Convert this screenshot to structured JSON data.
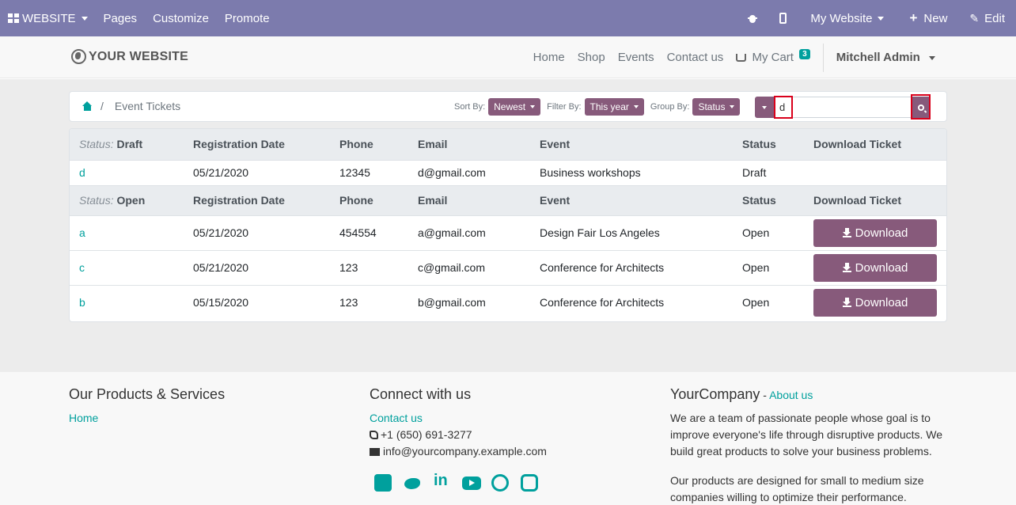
{
  "editbar": {
    "brand": "WEBSITE",
    "pages": "Pages",
    "customize": "Customize",
    "promote": "Promote",
    "my_website": "My Website",
    "new": "New",
    "edit": "Edit"
  },
  "header": {
    "logo": "YOUR WEBSITE",
    "nav": [
      "Home",
      "Shop",
      "Events",
      "Contact us"
    ],
    "cart_label": "My Cart",
    "cart_count": "3",
    "user": "Mitchell Admin"
  },
  "breadcrumb": {
    "current": "Event Tickets"
  },
  "filters": {
    "sort_label": "Sort By:",
    "sort_value": "Newest",
    "filter_label": "Filter By:",
    "filter_value": "This year",
    "group_label": "Group By:",
    "group_value": "Status"
  },
  "search": {
    "value": "d"
  },
  "table": {
    "columns": [
      "Registration Date",
      "Phone",
      "Email",
      "Event",
      "Status",
      "Download Ticket"
    ],
    "groups": [
      {
        "label": "Status:",
        "name": "Draft",
        "rows": [
          {
            "name": "d",
            "date": "05/21/2020",
            "phone": "12345",
            "email": "d@gmail.com",
            "event": "Business workshops",
            "status": "Draft",
            "download": ""
          }
        ]
      },
      {
        "label": "Status:",
        "name": "Open",
        "rows": [
          {
            "name": "a",
            "date": "05/21/2020",
            "phone": "454554",
            "email": "a@gmail.com",
            "event": "Design Fair Los Angeles",
            "status": "Open",
            "download": "Download"
          },
          {
            "name": "c",
            "date": "05/21/2020",
            "phone": "123",
            "email": "c@gmail.com",
            "event": "Conference for Architects",
            "status": "Open",
            "download": "Download"
          },
          {
            "name": "b",
            "date": "05/15/2020",
            "phone": "123",
            "email": "b@gmail.com",
            "event": "Conference for Architects",
            "status": "Open",
            "download": "Download"
          }
        ]
      }
    ]
  },
  "footer": {
    "products_title": "Our Products & Services",
    "products_link": "Home",
    "connect_title": "Connect with us",
    "contact_link": "Contact us",
    "phone": "+1 (650) 691-3277",
    "email": "info@yourcompany.example.com",
    "company": "YourCompany",
    "company_sep": " - ",
    "about_link": "About us",
    "about_p1": "We are a team of passionate people whose goal is to improve everyone's life through disruptive products. We build great products to solve your business problems.",
    "about_p2": "Our products are designed for small to medium size companies willing to optimize their performance.",
    "social_icons": [
      "facebook-icon",
      "twitter-icon",
      "linkedin-icon",
      "youtube-icon",
      "github-icon",
      "instagram-icon"
    ]
  },
  "colors": {
    "editbar": "#7c7bad",
    "primary": "#875a7b",
    "accent": "#00a09d"
  }
}
